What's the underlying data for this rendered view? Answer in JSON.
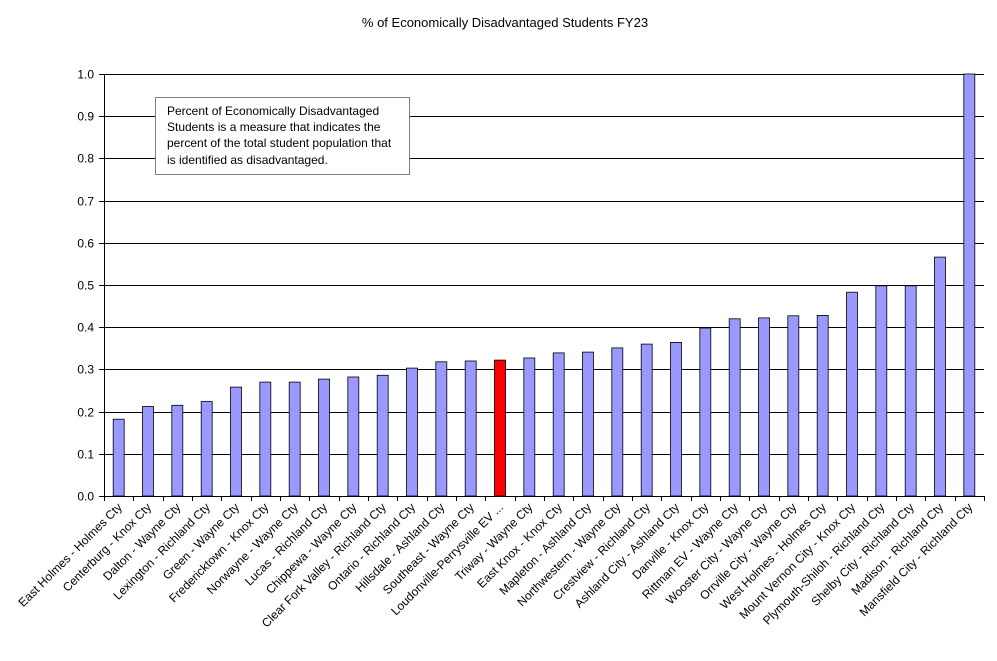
{
  "chart_data": {
    "type": "bar",
    "title": "% of Economically Disadvantaged  Students FY23",
    "xlabel": "",
    "ylabel": "",
    "ylim": [
      0,
      1
    ],
    "yticks": [
      "0.0",
      "0.1",
      "0.2",
      "0.3",
      "0.4",
      "0.5",
      "0.6",
      "0.7",
      "0.8",
      "0.9",
      "1.0"
    ],
    "grid": true,
    "colors": {
      "default": "#9999ff",
      "highlight": "#ff0000",
      "outline": "#000000"
    },
    "highlight_index": 13,
    "categories": [
      "East Holmes - Holmes Cty",
      "Centerburg - Knox Cty",
      "Dalton - Wayne Cty",
      "Lexington - Richland Cty",
      "Green - Wayne Cty",
      "Fredericktown - Knox Cty",
      "Norwayne - Wayne Cty",
      "Lucas - Richland Cty",
      "Chippewa - Wayne Cty",
      "Clear Fork Valley - Richland Cty",
      "Ontario - Richland Cty",
      "Hillsdale - Ashland Cty",
      "Southeast - Wayne Cty",
      "Loudonville-Perrysville EV ...",
      "Triway - Wayne Cty",
      "East Knox - Knox Cty",
      "Mapleton - Ashland Cty",
      "Northwestern - Wayne Cty",
      "Crestview - Richland Cty",
      "Ashland City - Ashland Cty",
      "Danville - Knox Cty",
      "Rittman EV - Wayne Cty",
      "Wooster City - Wayne Cty",
      "Orrville City - Wayne Cty",
      "West Holmes - Holmes Cty",
      "Mount Vernon City - Knox Cty",
      "Plymouth-Shiloh - Richland Cty",
      "Shelby City - Richland Cty",
      "Madison - Richland Cty",
      "Mansfield City - Richland Cty"
    ],
    "values": [
      0.182,
      0.212,
      0.215,
      0.224,
      0.258,
      0.27,
      0.27,
      0.277,
      0.282,
      0.286,
      0.303,
      0.318,
      0.32,
      0.322,
      0.327,
      0.339,
      0.341,
      0.351,
      0.36,
      0.364,
      0.398,
      0.42,
      0.422,
      0.427,
      0.428,
      0.483,
      0.498,
      0.498,
      0.566,
      1.0
    ]
  },
  "annotation": {
    "text": "Percent of Economically Disadvantaged Students is a measure that indicates the percent of the total student population that is identified as disadvantaged."
  }
}
